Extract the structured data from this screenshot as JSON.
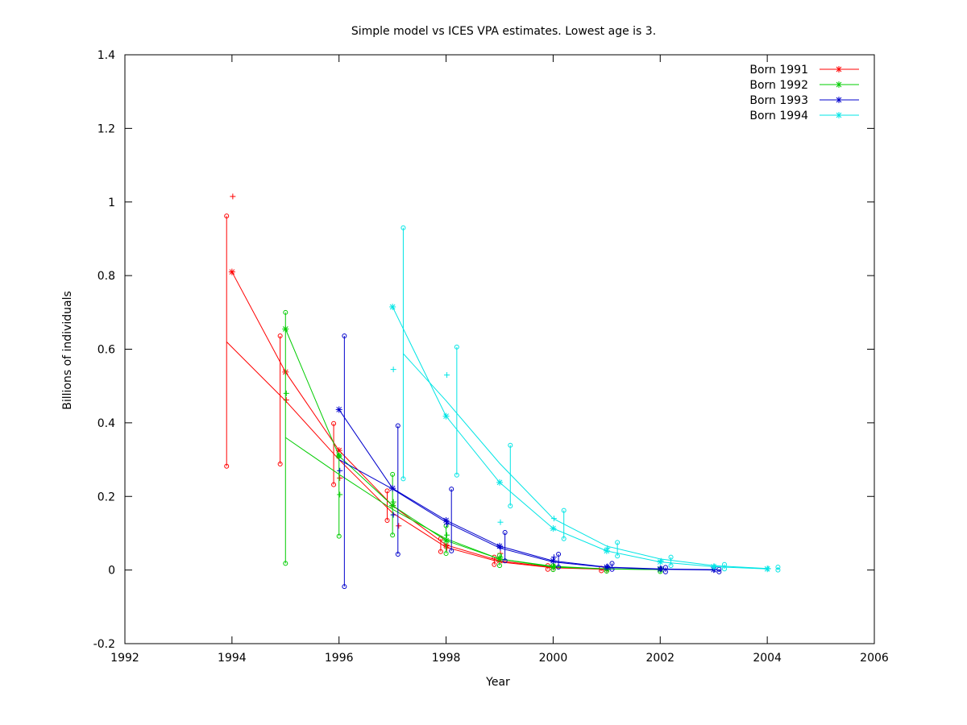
{
  "chart_data": {
    "type": "line",
    "title": "Simple model vs ICES VPA estimates. Lowest age is 3.",
    "xlabel": "Year",
    "ylabel": "Billions of individuals",
    "xlim": [
      1992,
      2006
    ],
    "ylim": [
      -0.2,
      1.4
    ],
    "xticks": [
      1992,
      1994,
      1996,
      1998,
      2000,
      2002,
      2004,
      2006
    ],
    "yticks": [
      -0.2,
      0,
      0.2,
      0.4,
      0.6,
      0.8,
      1,
      1.2,
      1.4
    ],
    "ytick_labels": [
      "-0.2",
      "0",
      "0.2",
      "0.4",
      "0.6",
      "0.8",
      "1",
      "1.2",
      "1.4"
    ],
    "grid": false,
    "legend_position": "top-right",
    "series": [
      {
        "name": "Born 1991",
        "color": "#ff0000",
        "model": {
          "x": [
            1994,
            1995,
            1996,
            1997,
            1998,
            1999,
            2000,
            2001
          ],
          "y": [
            0.81,
            0.538,
            0.325,
            0.175,
            0.068,
            0.025,
            0.007,
            0.002
          ]
        },
        "vpa_line": {
          "x": [
            1993.9,
            1995,
            1996,
            1997,
            1998,
            1999,
            2000,
            2001
          ],
          "y": [
            0.62,
            0.46,
            0.3,
            0.155,
            0.062,
            0.022,
            0.006,
            0.002
          ]
        },
        "vpa_points": {
          "x": [
            1994.0,
            1995.0,
            1996.0,
            1997.1,
            1998.0,
            1999.0,
            2000.0,
            2001.0
          ],
          "y": [
            1.015,
            0.462,
            0.25,
            0.12,
            0.06,
            0.045,
            0.01,
            0.004
          ]
        },
        "error_bars": [
          {
            "x": 1993.9,
            "low": 0.282,
            "high": 0.962
          },
          {
            "x": 1994.9,
            "low": 0.288,
            "high": 0.636
          },
          {
            "x": 1995.9,
            "low": 0.232,
            "high": 0.398
          },
          {
            "x": 1996.9,
            "low": 0.135,
            "high": 0.215
          },
          {
            "x": 1997.9,
            "low": 0.05,
            "high": 0.085
          },
          {
            "x": 1998.9,
            "low": 0.015,
            "high": 0.035
          },
          {
            "x": 1999.9,
            "low": 0.002,
            "high": 0.012
          },
          {
            "x": 2000.9,
            "low": -0.002,
            "high": 0.005
          }
        ]
      },
      {
        "name": "Born 1992",
        "color": "#00cc00",
        "model": {
          "x": [
            1995,
            1996,
            1997,
            1998,
            1999,
            2000,
            2001,
            2002
          ],
          "y": [
            0.655,
            0.31,
            0.175,
            0.08,
            0.03,
            0.008,
            0.003,
            0.001
          ]
        },
        "vpa_line": {
          "x": [
            1995,
            1996,
            1997,
            1998,
            1999,
            2000,
            2001,
            2002
          ],
          "y": [
            0.36,
            0.26,
            0.165,
            0.085,
            0.03,
            0.01,
            0.003,
            0.001
          ]
        },
        "vpa_points": {
          "x": [
            1995.0,
            1996.0,
            1997.0,
            1998.0,
            1999.0,
            2000.0,
            2001.0,
            2002.0
          ],
          "y": [
            0.48,
            0.205,
            0.185,
            0.095,
            0.035,
            0.01,
            0.004,
            0.002
          ]
        },
        "error_bars": [
          {
            "x": 1995.0,
            "low": 0.018,
            "high": 0.7
          },
          {
            "x": 1996.0,
            "low": 0.092,
            "high": 0.31
          },
          {
            "x": 1997.0,
            "low": 0.095,
            "high": 0.26
          },
          {
            "x": 1998.0,
            "low": 0.045,
            "high": 0.12
          },
          {
            "x": 1999.0,
            "low": 0.012,
            "high": 0.04
          },
          {
            "x": 2000.0,
            "low": 0.001,
            "high": 0.012
          },
          {
            "x": 2001.0,
            "low": -0.003,
            "high": 0.005
          },
          {
            "x": 2002.0,
            "low": -0.004,
            "high": 0.003
          }
        ]
      },
      {
        "name": "Born 1993",
        "color": "#0000cc",
        "model": {
          "x": [
            1996,
            1997,
            1998,
            1999,
            2000,
            2001,
            2002,
            2003
          ],
          "y": [
            0.436,
            0.222,
            0.135,
            0.065,
            0.025,
            0.008,
            0.003,
            0.001
          ]
        },
        "vpa_line": {
          "x": [
            1996,
            1997,
            1998,
            1999,
            2000,
            2001,
            2002,
            2003
          ],
          "y": [
            0.3,
            0.22,
            0.13,
            0.06,
            0.022,
            0.007,
            0.002,
            0.0
          ]
        },
        "vpa_points": {
          "x": [
            1996.0,
            1997.0,
            1998.0,
            1999.0,
            2000.0,
            2001.0,
            2002.0,
            2003.0
          ],
          "y": [
            0.27,
            0.15,
            0.125,
            0.06,
            0.035,
            0.01,
            0.004,
            0.001
          ]
        },
        "error_bars": [
          {
            "x": 1996.1,
            "low": -0.045,
            "high": 0.636
          },
          {
            "x": 1997.1,
            "low": 0.043,
            "high": 0.392
          },
          {
            "x": 1998.1,
            "low": 0.052,
            "high": 0.22
          },
          {
            "x": 1999.1,
            "low": 0.025,
            "high": 0.102
          },
          {
            "x": 2000.1,
            "low": 0.008,
            "high": 0.043
          },
          {
            "x": 2001.1,
            "low": 0.002,
            "high": 0.018
          },
          {
            "x": 2002.1,
            "low": -0.005,
            "high": 0.007
          },
          {
            "x": 2003.1,
            "low": -0.005,
            "high": 0.002
          }
        ]
      },
      {
        "name": "Born 1994",
        "color": "#00e5e5",
        "model": {
          "x": [
            1997,
            1998,
            1999,
            2000,
            2001,
            2002,
            2003,
            2004
          ],
          "y": [
            0.715,
            0.418,
            0.238,
            0.113,
            0.052,
            0.022,
            0.009,
            0.003
          ]
        },
        "vpa_line": {
          "x": [
            1997.2,
            1998,
            1999,
            2000,
            2001,
            2002,
            2003,
            2004
          ],
          "y": [
            0.588,
            0.46,
            0.29,
            0.14,
            0.065,
            0.03,
            0.012,
            0.004
          ]
        },
        "vpa_points": {
          "x": [
            1997.0,
            1998.0,
            1999.0,
            2000.0,
            2001.0,
            2002.0,
            2003.0,
            2004.0
          ],
          "y": [
            0.545,
            0.53,
            0.13,
            0.14,
            0.06,
            0.025,
            0.01,
            0.004
          ]
        },
        "error_bars": [
          {
            "x": 1997.2,
            "low": 0.248,
            "high": 0.93
          },
          {
            "x": 1998.2,
            "low": 0.258,
            "high": 0.606
          },
          {
            "x": 1999.2,
            "low": 0.174,
            "high": 0.339
          },
          {
            "x": 2000.2,
            "low": 0.085,
            "high": 0.162
          },
          {
            "x": 2001.2,
            "low": 0.038,
            "high": 0.075
          },
          {
            "x": 2002.2,
            "low": 0.012,
            "high": 0.035
          },
          {
            "x": 2003.2,
            "low": 0.003,
            "high": 0.015
          },
          {
            "x": 2004.2,
            "low": 0.0,
            "high": 0.008
          }
        ]
      }
    ]
  },
  "legend": {
    "items": [
      {
        "label": "Born 1991",
        "color": "#ff0000"
      },
      {
        "label": "Born 1992",
        "color": "#00cc00"
      },
      {
        "label": "Born 1993",
        "color": "#0000cc"
      },
      {
        "label": "Born 1994",
        "color": "#00e5e5"
      }
    ]
  }
}
